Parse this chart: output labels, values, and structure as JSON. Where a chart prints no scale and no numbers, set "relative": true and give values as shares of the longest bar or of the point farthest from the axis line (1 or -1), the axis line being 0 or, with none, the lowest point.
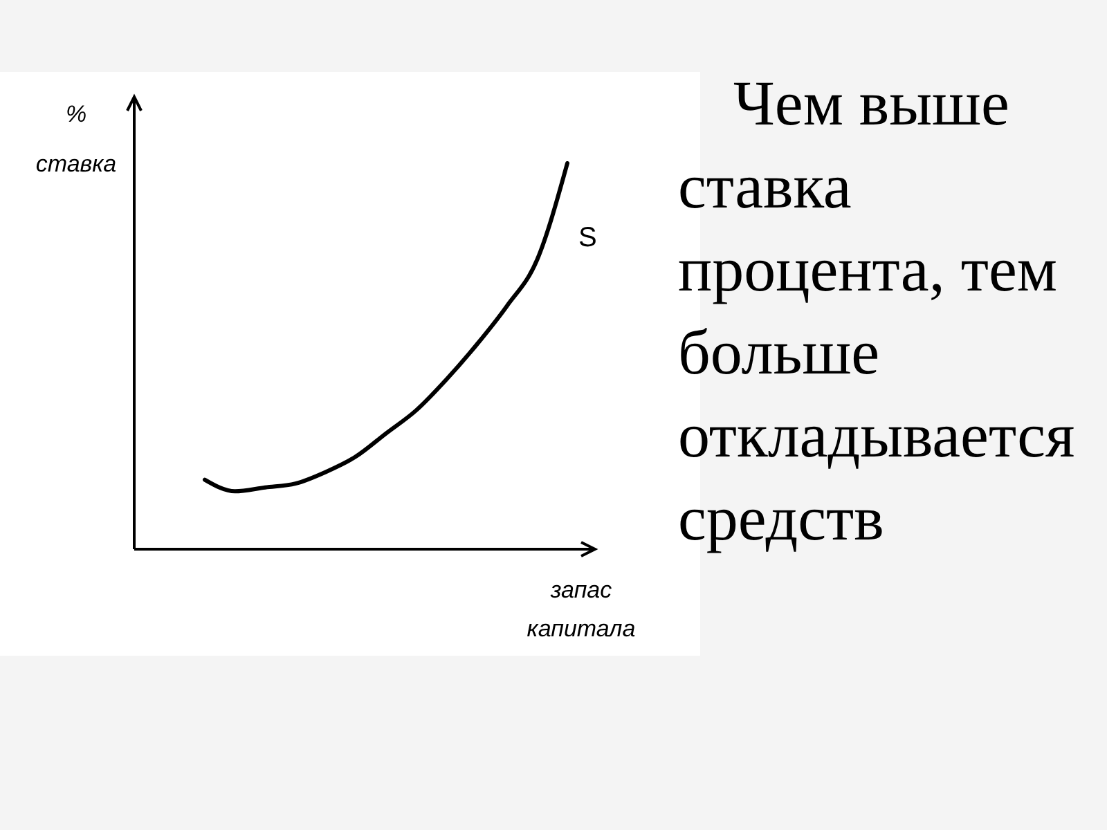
{
  "chart_data": {
    "type": "line",
    "relative": true,
    "ylabel": "% ставка",
    "xlabel": "запас капитала",
    "categories": [
      null,
      null,
      null,
      null,
      null,
      null,
      null,
      null,
      null,
      null,
      null,
      null,
      null
    ],
    "series": [
      {
        "name": "S",
        "color": "#000000",
        "values": [
          0.18,
          0.15,
          0.16,
          0.17,
          0.2,
          0.24,
          0.3,
          0.36,
          0.44,
          0.53,
          0.63,
          0.75,
          1
        ]
      }
    ],
    "marker": "none",
    "line_style": "solid",
    "grid": false,
    "annotations": [
      "Чем выше ставка процента, тем больше откладывается средств"
    ]
  }
}
